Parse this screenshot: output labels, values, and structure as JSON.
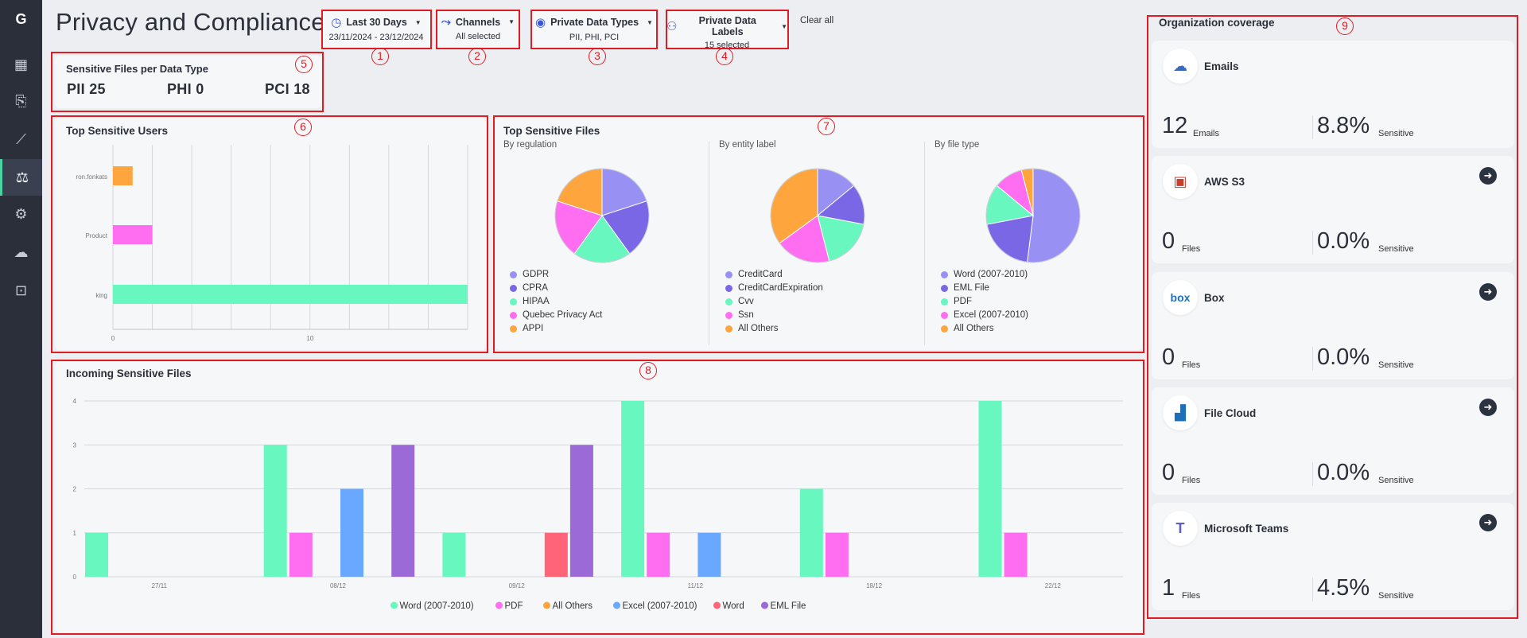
{
  "page": {
    "title": "Privacy and Compliance"
  },
  "sidebar": {
    "logo": "G",
    "items": [
      {
        "icon": "dashboard-icon",
        "glyph": "▦"
      },
      {
        "icon": "document-shield-icon",
        "glyph": "⎘"
      },
      {
        "icon": "line-chart-icon",
        "glyph": "⟋"
      },
      {
        "icon": "privacy-chart-icon",
        "glyph": "⚖"
      },
      {
        "icon": "gear-icon",
        "glyph": "⚙"
      },
      {
        "icon": "cloud-icon",
        "glyph": "☁"
      },
      {
        "icon": "report-icon",
        "glyph": "⊡"
      }
    ]
  },
  "filters": [
    {
      "label": "Last 30 Days",
      "sub": "23/11/2024 - 23/12/2024",
      "icon": "clock-icon"
    },
    {
      "label": "Channels",
      "sub": "All selected",
      "icon": "channels-icon"
    },
    {
      "label": "Private Data Types",
      "sub": "PII, PHI, PCI",
      "icon": "eye-icon"
    },
    {
      "label": "Private Data Labels",
      "sub": "15 selected",
      "icon": "user-label-icon"
    }
  ],
  "clear_all": "Clear all",
  "annotations": [
    "1",
    "2",
    "3",
    "4",
    "5",
    "6",
    "7",
    "8",
    "9"
  ],
  "sensitive_files": {
    "title": "Sensitive Files per Data Type",
    "items": [
      {
        "label": "PII",
        "value": "25"
      },
      {
        "label": "PHI",
        "value": "0"
      },
      {
        "label": "PCI",
        "value": "18"
      }
    ]
  },
  "colors": {
    "accent": "#4cd3a4",
    "orange": "#ffa53d",
    "pink": "#ff6df0",
    "green": "#68f7be",
    "lavender": "#9890f3",
    "purple": "#7a67e6",
    "blue": "#6aa8ff",
    "red": "#ff6479",
    "violet": "#9c6ad6",
    "annotation": "#e11b22"
  },
  "chart_data": [
    {
      "id": "top-sensitive-users",
      "type": "bar",
      "orientation": "horizontal",
      "title": "Top Sensitive Users",
      "categories": [
        "ron.fonkats",
        "Product",
        "king"
      ],
      "values": [
        1,
        2,
        18
      ],
      "colors": [
        "#ffa53d",
        "#ff6df0",
        "#68f7be"
      ],
      "xlim": [
        0,
        18
      ],
      "xticks": [
        0,
        10
      ],
      "grid": true
    },
    {
      "id": "top-sensitive-files-regulation",
      "type": "pie",
      "title": "Top Sensitive Files",
      "subtitle": "By regulation",
      "labels": [
        "GDPR",
        "CPRA",
        "HIPAA",
        "Quebec Privacy Act",
        "APPI"
      ],
      "values": [
        20,
        20,
        20,
        20,
        20
      ],
      "colors": [
        "#9890f3",
        "#7a67e6",
        "#68f7be",
        "#ff6df0",
        "#ffa53d"
      ]
    },
    {
      "id": "top-sensitive-files-entity",
      "type": "pie",
      "subtitle": "By entity label",
      "labels": [
        "CreditCard",
        "CreditCardExpiration",
        "Cvv",
        "Ssn",
        "All Others"
      ],
      "values": [
        14,
        14,
        18,
        19,
        35
      ],
      "colors": [
        "#9890f3",
        "#7a67e6",
        "#68f7be",
        "#ff6df0",
        "#ffa53d"
      ]
    },
    {
      "id": "top-sensitive-files-filetype",
      "type": "pie",
      "subtitle": "By file type",
      "labels": [
        "Word (2007-2010)",
        "EML File",
        "PDF",
        "Excel (2007-2010)",
        "All Others"
      ],
      "values": [
        52,
        20,
        14,
        10,
        4
      ],
      "colors": [
        "#9890f3",
        "#7a67e6",
        "#68f7be",
        "#ff6df0",
        "#ffa53d"
      ]
    },
    {
      "id": "incoming-sensitive-files",
      "type": "bar",
      "title": "Incoming Sensitive Files",
      "ylim": [
        0,
        4
      ],
      "yticks": [
        0,
        1,
        2,
        3,
        4
      ],
      "xticks": [
        "27/11",
        "08/12",
        "09/12",
        "11/12",
        "18/12",
        "22/12"
      ],
      "legend": "bottom-center",
      "series_names": [
        "Word (2007-2010)",
        "PDF",
        "All Others",
        "Excel (2007-2010)",
        "Word",
        "EML File"
      ],
      "series_colors": [
        "#68f7be",
        "#ff6df0",
        "#ffa53d",
        "#6aa8ff",
        "#ff6479",
        "#9c6ad6"
      ],
      "bars": [
        {
          "series": "Word (2007-2010)",
          "value": 1,
          "slot": 0
        },
        {
          "series": "Word (2007-2010)",
          "value": 3,
          "slot": 7
        },
        {
          "series": "PDF",
          "value": 1,
          "slot": 8
        },
        {
          "series": "Excel (2007-2010)",
          "value": 2,
          "slot": 10
        },
        {
          "series": "EML File",
          "value": 3,
          "slot": 12
        },
        {
          "series": "Word (2007-2010)",
          "value": 1,
          "slot": 14
        },
        {
          "series": "Word",
          "value": 1,
          "slot": 18
        },
        {
          "series": "EML File",
          "value": 3,
          "slot": 19
        },
        {
          "series": "Word (2007-2010)",
          "value": 4,
          "slot": 21
        },
        {
          "series": "PDF",
          "value": 1,
          "slot": 22
        },
        {
          "series": "Excel (2007-2010)",
          "value": 1,
          "slot": 24
        },
        {
          "series": "Word (2007-2010)",
          "value": 2,
          "slot": 28
        },
        {
          "series": "PDF",
          "value": 1,
          "slot": 29
        },
        {
          "series": "Word (2007-2010)",
          "value": 4,
          "slot": 35
        },
        {
          "series": "PDF",
          "value": 1,
          "slot": 36
        }
      ]
    }
  ],
  "org_coverage": {
    "title": "Organization coverage",
    "items": [
      {
        "name": "Emails",
        "icon": "cloud-upload-icon",
        "count": "12",
        "count_unit": "Emails",
        "pct": "8.8%",
        "pct_unit": "Sensitive",
        "arrow": false
      },
      {
        "name": "AWS S3",
        "icon": "aws-s3-icon",
        "count": "0",
        "count_unit": "Files",
        "pct": "0.0%",
        "pct_unit": "Sensitive",
        "arrow": true
      },
      {
        "name": "Box",
        "icon": "box-icon",
        "count": "0",
        "count_unit": "Files",
        "pct": "0.0%",
        "pct_unit": "Sensitive",
        "arrow": true
      },
      {
        "name": "File Cloud",
        "icon": "file-cloud-icon",
        "count": "0",
        "count_unit": "Files",
        "pct": "0.0%",
        "pct_unit": "Sensitive",
        "arrow": true
      },
      {
        "name": "Microsoft Teams",
        "icon": "microsoft-teams-icon",
        "count": "1",
        "count_unit": "Files",
        "pct": "4.5%",
        "pct_unit": "Sensitive",
        "arrow": true
      }
    ]
  }
}
